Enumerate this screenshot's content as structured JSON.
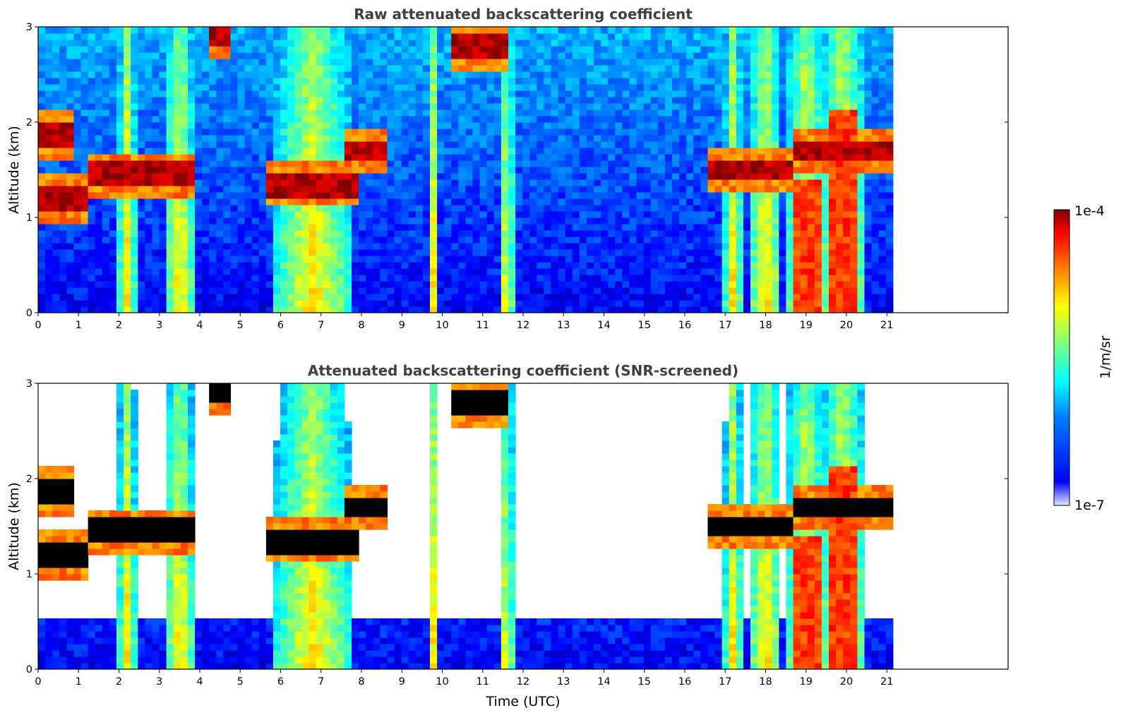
{
  "chart_data": [
    {
      "type": "heatmap",
      "title": "Raw attenuated backscattering coefficient",
      "xlabel": "",
      "ylabel": "Altitude (km)",
      "xlim": [
        0,
        24
      ],
      "ylim": [
        0,
        3
      ],
      "data_end_time": 21.15,
      "x_ticks": [
        "0",
        "1",
        "2",
        "3",
        "4",
        "5",
        "6",
        "7",
        "8",
        "9",
        "10",
        "11",
        "12",
        "13",
        "14",
        "15",
        "16",
        "17",
        "18",
        "19",
        "20",
        "21"
      ],
      "y_ticks": [
        "0",
        "1",
        "2",
        "3"
      ],
      "screened": false,
      "features": {
        "cloud_layers": [
          {
            "t0": 0.0,
            "t1": 0.35,
            "alt": 1.85
          },
          {
            "t0": 0.35,
            "t1": 0.9,
            "alt": 1.85
          },
          {
            "t0": 0.0,
            "t1": 1.3,
            "alt": 1.2
          },
          {
            "t0": 1.3,
            "t1": 3.9,
            "alt": 1.45
          },
          {
            "t0": 4.3,
            "t1": 4.8,
            "alt": 2.9
          },
          {
            "t0": 5.6,
            "t1": 8.0,
            "alt": 1.35
          },
          {
            "t0": 7.6,
            "t1": 8.7,
            "alt": 1.7
          },
          {
            "t0": 10.3,
            "t1": 11.6,
            "alt": 2.8
          },
          {
            "t0": 16.5,
            "t1": 18.7,
            "alt": 1.5
          },
          {
            "t0": 18.7,
            "t1": 21.15,
            "alt": 1.7
          }
        ],
        "precip_columns": [
          {
            "t": 2.2,
            "w": 0.2
          },
          {
            "t": 3.5,
            "w": 0.35
          },
          {
            "t": 6.8,
            "w": 0.9
          },
          {
            "t": 9.8,
            "w": 0.15
          },
          {
            "t": 11.6,
            "w": 0.15
          },
          {
            "t": 17.2,
            "w": 0.2
          },
          {
            "t": 18.0,
            "w": 0.4
          },
          {
            "t": 19.0,
            "w": 0.5
          },
          {
            "t": 19.9,
            "w": 0.6
          }
        ]
      }
    },
    {
      "type": "heatmap",
      "title": "Attenuated backscattering coefficient (SNR-screened)",
      "xlabel": "Time (UTC)",
      "ylabel": "Altitude (km)",
      "xlim": [
        0,
        24
      ],
      "ylim": [
        0,
        3
      ],
      "data_end_time": 21.15,
      "x_ticks": [
        "0",
        "1",
        "2",
        "3",
        "4",
        "5",
        "6",
        "7",
        "8",
        "9",
        "10",
        "11",
        "12",
        "13",
        "14",
        "15",
        "16",
        "17",
        "18",
        "19",
        "20",
        "21"
      ],
      "y_ticks": [
        "0",
        "1",
        "2",
        "3"
      ],
      "screened": true
    }
  ],
  "colorbar": {
    "max_label": "1e-4",
    "min_label": "1e-7",
    "unit_label": "1/m/sr",
    "scale": "log",
    "colormap": "jet"
  },
  "colors": {
    "title_gray": "#404040",
    "screened_cloud_top": "#000000"
  }
}
